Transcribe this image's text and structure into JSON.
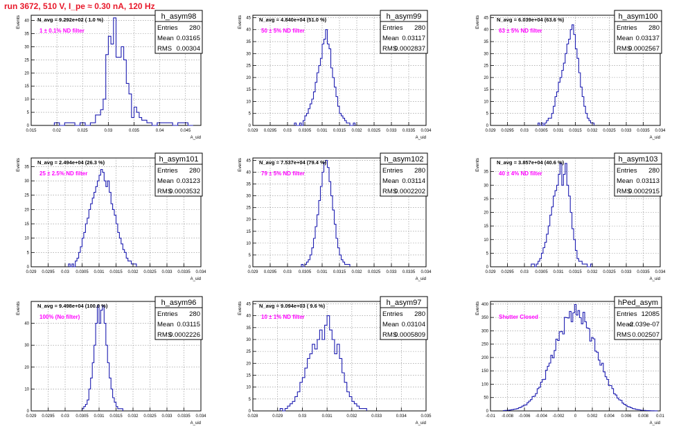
{
  "page_title": "run 3672,   510 V, I_pe ≈ 0.30 nA, 120 Hz",
  "y_axis_label": "Events",
  "x_axis_label": "A_uid",
  "colors": {
    "histogram": "#1c1cb0",
    "annotation": "#ff00ff",
    "title": "#e8182a",
    "grid": "#888888"
  },
  "chart_data": [
    {
      "type": "bar",
      "name": "h_asym98",
      "navg_text": "N_avg = 9.292e+02 ( 1.0 %)",
      "filter_label": "1 ± 0.1% ND filter",
      "stats": {
        "entries": "280",
        "mean": "0.03165",
        "rms": "0.00304"
      },
      "xlim": [
        0.015,
        0.048
      ],
      "ylim": [
        0,
        42
      ],
      "x_ticks": [
        0.015,
        0.02,
        0.025,
        0.03,
        0.035,
        0.04,
        0.045
      ],
      "x_tick_labels": [
        "0.015",
        "0.02",
        "0.025",
        "0.03",
        "0.035",
        "0.04",
        "0.045"
      ],
      "y_ticks": [
        0,
        5,
        10,
        15,
        20,
        25,
        30,
        35,
        40
      ],
      "bin_edges": [
        0.0195,
        0.0205,
        0.0215,
        0.0235,
        0.0245,
        0.0255,
        0.0265,
        0.0275,
        0.0285,
        0.029,
        0.0295,
        0.03,
        0.0305,
        0.031,
        0.0315,
        0.032,
        0.0325,
        0.033,
        0.0335,
        0.034,
        0.0345,
        0.035,
        0.0355,
        0.036,
        0.0365,
        0.037,
        0.0375,
        0.038,
        0.0385,
        0.0395,
        0.0425,
        0.0435,
        0.0455,
        0.0465
      ],
      "counts": [
        1,
        0,
        1,
        0,
        1,
        0,
        1,
        4,
        6,
        10,
        27,
        34,
        31,
        41,
        26,
        26,
        30,
        25,
        16,
        12,
        3,
        7,
        5,
        3,
        2,
        2,
        1,
        1,
        0,
        1,
        0,
        1,
        0
      ]
    },
    {
      "type": "bar",
      "name": "h_asym99",
      "navg_text": "N_avg = 4.840e+04 (51.0 %)",
      "filter_label": "50 ± 5% ND filter",
      "stats": {
        "entries": "280",
        "mean": "0.03117",
        "rms": "0.0002837"
      },
      "xlim": [
        0.029,
        0.034
      ],
      "ylim": [
        0,
        46
      ],
      "x_ticks": [
        0.029,
        0.0295,
        0.03,
        0.0305,
        0.031,
        0.0315,
        0.032,
        0.0325,
        0.033,
        0.0335,
        0.034
      ],
      "x_tick_labels": [
        "0.029",
        "0.0295",
        "0.03",
        "0.0305",
        "0.031",
        "0.0315",
        "0.032",
        "0.0325",
        "0.033",
        "0.0335",
        "0.034"
      ],
      "y_ticks": [
        0,
        5,
        10,
        15,
        20,
        25,
        30,
        35,
        40,
        45
      ],
      "bin_edges": [
        0.0302,
        0.03025,
        0.0303,
        0.03035,
        0.0304,
        0.03045,
        0.0305,
        0.03055,
        0.0306,
        0.03065,
        0.0307,
        0.03075,
        0.0308,
        0.03085,
        0.0309,
        0.03095,
        0.031,
        0.03105,
        0.0311,
        0.03115,
        0.0312,
        0.03125,
        0.0313,
        0.03135,
        0.0314,
        0.03145,
        0.0315,
        0.03155,
        0.0316,
        0.03165,
        0.0317,
        0.03175,
        0.0318,
        0.03185,
        0.0319,
        0.03195
      ],
      "counts": [
        1,
        0,
        0,
        1,
        0,
        2,
        4,
        5,
        7,
        9,
        11,
        14,
        18,
        22,
        25,
        28,
        34,
        36,
        40,
        34,
        32,
        24,
        20,
        16,
        12,
        8,
        5,
        4,
        3,
        2,
        1,
        1,
        0,
        0,
        1
      ]
    },
    {
      "type": "bar",
      "name": "h_asym100",
      "navg_text": "N_avg = 6.039e+04 (63.6 %)",
      "filter_label": "63 ± 5% ND filter",
      "stats": {
        "entries": "280",
        "mean": "0.03137",
        "rms": "0.0002567"
      },
      "xlim": [
        0.029,
        0.034
      ],
      "ylim": [
        0,
        46
      ],
      "x_ticks": [
        0.029,
        0.0295,
        0.03,
        0.0305,
        0.031,
        0.0315,
        0.032,
        0.0325,
        0.033,
        0.0335,
        0.034
      ],
      "x_tick_labels": [
        "0.029",
        "0.0295",
        "0.03",
        "0.0305",
        "0.031",
        "0.0315",
        "0.032",
        "0.0325",
        "0.033",
        "0.0335",
        "0.034"
      ],
      "y_ticks": [
        0,
        5,
        10,
        15,
        20,
        25,
        30,
        35,
        40,
        45
      ],
      "bin_edges": [
        0.0304,
        0.03045,
        0.0305,
        0.03055,
        0.0306,
        0.03065,
        0.0307,
        0.03075,
        0.0308,
        0.03085,
        0.0309,
        0.03095,
        0.031,
        0.03105,
        0.0311,
        0.03115,
        0.0312,
        0.03125,
        0.0313,
        0.03135,
        0.0314,
        0.03145,
        0.0315,
        0.03155,
        0.0316,
        0.03165,
        0.0317,
        0.03175,
        0.0318,
        0.03185,
        0.0319,
        0.03195,
        0.032,
        0.03205
      ],
      "counts": [
        1,
        0,
        1,
        0,
        1,
        2,
        3,
        3,
        5,
        8,
        12,
        14,
        18,
        20,
        23,
        26,
        30,
        34,
        36,
        40,
        42,
        38,
        32,
        28,
        22,
        16,
        12,
        8,
        5,
        3,
        2,
        1,
        1
      ]
    },
    {
      "type": "bar",
      "name": "h_asym101",
      "navg_text": "N_avg = 2.494e+04 (26.3 %)",
      "filter_label": "25 ± 2.5% ND filter",
      "stats": {
        "entries": "280",
        "mean": "0.03123",
        "rms": "0.0003532"
      },
      "xlim": [
        0.029,
        0.034
      ],
      "ylim": [
        0,
        38
      ],
      "x_ticks": [
        0.029,
        0.0295,
        0.03,
        0.0305,
        0.031,
        0.0315,
        0.032,
        0.0325,
        0.033,
        0.0335,
        0.034
      ],
      "x_tick_labels": [
        "0.029",
        "0.0295",
        "0.03",
        "0.0305",
        "0.031",
        "0.0315",
        "0.032",
        "0.0325",
        "0.033",
        "0.0335",
        "0.034"
      ],
      "y_ticks": [
        0,
        5,
        10,
        15,
        20,
        25,
        30,
        35
      ],
      "bin_edges": [
        0.0301,
        0.03015,
        0.0302,
        0.03025,
        0.0303,
        0.03035,
        0.0304,
        0.03045,
        0.0305,
        0.03055,
        0.0306,
        0.03065,
        0.0307,
        0.03075,
        0.0308,
        0.03085,
        0.0309,
        0.03095,
        0.031,
        0.03105,
        0.0311,
        0.03115,
        0.0312,
        0.03125,
        0.0313,
        0.03135,
        0.0314,
        0.03145,
        0.0315,
        0.03155,
        0.0316,
        0.03165,
        0.0317,
        0.03175,
        0.0318,
        0.03185,
        0.0319,
        0.03195,
        0.032,
        0.03205,
        0.0321
      ],
      "counts": [
        1,
        0,
        1,
        0,
        2,
        3,
        5,
        7,
        10,
        12,
        15,
        17,
        20,
        22,
        24,
        26,
        28,
        30,
        32,
        34,
        33,
        30,
        28,
        30,
        26,
        22,
        20,
        18,
        15,
        12,
        10,
        8,
        6,
        5,
        3,
        2,
        2,
        1,
        1,
        1
      ]
    },
    {
      "type": "bar",
      "name": "h_asym102",
      "navg_text": "N_avg = 7.537e+04 (79.4 %)",
      "filter_label": "79 ± 5% ND filter",
      "stats": {
        "entries": "280",
        "mean": "0.03114",
        "rms": "0.0002202"
      },
      "xlim": [
        0.029,
        0.034
      ],
      "ylim": [
        0,
        46
      ],
      "x_ticks": [
        0.029,
        0.0295,
        0.03,
        0.0305,
        0.031,
        0.0315,
        0.032,
        0.0325,
        0.033,
        0.0335,
        0.034
      ],
      "x_tick_labels": [
        "0.029",
        "0.0295",
        "0.03",
        "0.0305",
        "0.031",
        "0.0315",
        "0.032",
        "0.0325",
        "0.033",
        "0.0335",
        "0.034"
      ],
      "y_ticks": [
        0,
        5,
        10,
        15,
        20,
        25,
        30,
        35,
        40,
        45
      ],
      "bin_edges": [
        0.0304,
        0.03045,
        0.0305,
        0.03055,
        0.0306,
        0.03065,
        0.0307,
        0.03075,
        0.0308,
        0.03085,
        0.0309,
        0.03095,
        0.031,
        0.03105,
        0.0311,
        0.03115,
        0.0312,
        0.03125,
        0.0313,
        0.03135,
        0.0314,
        0.03145,
        0.0315,
        0.03155,
        0.0316,
        0.03165,
        0.0317,
        0.03175,
        0.0318
      ],
      "counts": [
        1,
        0,
        1,
        2,
        3,
        5,
        8,
        12,
        17,
        22,
        28,
        34,
        40,
        44,
        45,
        42,
        36,
        30,
        24,
        18,
        12,
        8,
        5,
        3,
        2,
        1,
        1,
        1
      ]
    },
    {
      "type": "bar",
      "name": "h_asym103",
      "navg_text": "N_avg = 3.857e+04 (40.6 %)",
      "filter_label": "40 ± 4% ND filter",
      "stats": {
        "entries": "280",
        "mean": "0.03113",
        "rms": "0.0002915"
      },
      "xlim": [
        0.029,
        0.034
      ],
      "ylim": [
        0,
        40
      ],
      "x_ticks": [
        0.029,
        0.0295,
        0.03,
        0.0305,
        0.031,
        0.0315,
        0.032,
        0.0325,
        0.033,
        0.0335,
        0.034
      ],
      "x_tick_labels": [
        "0.029",
        "0.0295",
        "0.03",
        "0.0305",
        "0.031",
        "0.0315",
        "0.032",
        "0.0325",
        "0.033",
        "0.0335",
        "0.034"
      ],
      "y_ticks": [
        0,
        5,
        10,
        15,
        20,
        25,
        30,
        35
      ],
      "bin_edges": [
        0.0302,
        0.03025,
        0.0303,
        0.03035,
        0.0304,
        0.03045,
        0.0305,
        0.03055,
        0.0306,
        0.03065,
        0.0307,
        0.03075,
        0.0308,
        0.03085,
        0.0309,
        0.03095,
        0.031,
        0.03105,
        0.0311,
        0.03115,
        0.0312,
        0.03125,
        0.0313,
        0.03135,
        0.0314,
        0.03145,
        0.0315,
        0.03155,
        0.0316,
        0.03165,
        0.0317,
        0.03175,
        0.0318,
        0.03185,
        0.0319,
        0.03195,
        0.032
      ],
      "counts": [
        1,
        1,
        0,
        1,
        2,
        3,
        5,
        7,
        9,
        12,
        15,
        19,
        22,
        26,
        28,
        30,
        34,
        38,
        30,
        34,
        38,
        30,
        26,
        20,
        14,
        10,
        6,
        3,
        2,
        2,
        1,
        1,
        1,
        0,
        0,
        1
      ]
    },
    {
      "type": "bar",
      "name": "h_asym96",
      "navg_text": "N_avg = 9.498e+04 (100.0 %)",
      "filter_label": "100% (No filter)",
      "stats": {
        "entries": "280",
        "mean": "0.03115",
        "rms": "0.0002226"
      },
      "xlim": [
        0.029,
        0.034
      ],
      "ylim": [
        0,
        50
      ],
      "x_ticks": [
        0.029,
        0.0295,
        0.03,
        0.0305,
        0.031,
        0.0315,
        0.032,
        0.0325,
        0.033,
        0.0335,
        0.034
      ],
      "x_tick_labels": [
        "0.029",
        "0.0295",
        "0.03",
        "0.0305",
        "0.031",
        "0.0315",
        "0.032",
        "0.0325",
        "0.033",
        "0.0335",
        "0.034"
      ],
      "y_ticks": [
        0,
        10,
        20,
        30,
        40
      ],
      "bin_edges": [
        0.0305,
        0.03055,
        0.0306,
        0.03065,
        0.0307,
        0.03075,
        0.0308,
        0.03085,
        0.0309,
        0.03095,
        0.031,
        0.03105,
        0.0311,
        0.03115,
        0.0312,
        0.03125,
        0.0313,
        0.03135,
        0.0314,
        0.03145,
        0.0315,
        0.03155,
        0.0316,
        0.03165,
        0.0317
      ],
      "counts": [
        1,
        2,
        3,
        5,
        10,
        15,
        22,
        30,
        40,
        48,
        40,
        46,
        48,
        40,
        30,
        22,
        15,
        10,
        6,
        4,
        2,
        1,
        1,
        1
      ]
    },
    {
      "type": "bar",
      "name": "h_asym97",
      "navg_text": "N_avg = 9.094e+03 ( 9.6 %)",
      "filter_label": "10 ± 1% ND filter",
      "stats": {
        "entries": "280",
        "mean": "0.03104",
        "rms": "0.0005809"
      },
      "xlim": [
        0.028,
        0.035
      ],
      "ylim": [
        0,
        46
      ],
      "x_ticks": [
        0.028,
        0.029,
        0.03,
        0.031,
        0.032,
        0.033,
        0.034,
        0.035
      ],
      "x_tick_labels": [
        "0.028",
        "0.029",
        "0.03",
        "0.031",
        "0.032",
        "0.033",
        "0.034",
        "0.035"
      ],
      "y_ticks": [
        0,
        5,
        10,
        15,
        20,
        25,
        30,
        35,
        40,
        45
      ],
      "bin_edges": [
        0.0291,
        0.0292,
        0.0293,
        0.0294,
        0.0295,
        0.0296,
        0.0297,
        0.0298,
        0.0299,
        0.03,
        0.0301,
        0.0302,
        0.0303,
        0.0304,
        0.0305,
        0.0306,
        0.0307,
        0.0308,
        0.0309,
        0.031,
        0.0311,
        0.0312,
        0.0313,
        0.0314,
        0.0315,
        0.0316,
        0.0317,
        0.0318,
        0.0319,
        0.032,
        0.0321,
        0.0322,
        0.0323,
        0.0324,
        0.0325,
        0.0326
      ],
      "counts": [
        1,
        0,
        1,
        2,
        3,
        4,
        6,
        8,
        12,
        14,
        18,
        22,
        24,
        28,
        26,
        30,
        34,
        30,
        36,
        40,
        34,
        30,
        24,
        28,
        22,
        16,
        12,
        8,
        6,
        4,
        3,
        2,
        1,
        1,
        1
      ]
    },
    {
      "type": "bar",
      "name": "hPed_asym",
      "navg_text": "",
      "filter_label": "Shutter Closed",
      "stats": {
        "entries": "12085",
        "mean": "-2.039e-07",
        "rms": "0.002507"
      },
      "xlim": [
        -0.01,
        0.01
      ],
      "ylim": [
        0,
        410
      ],
      "x_ticks": [
        -0.01,
        -0.008,
        -0.006,
        -0.004,
        -0.002,
        0,
        0.002,
        0.004,
        0.006,
        0.008,
        0.01
      ],
      "x_tick_labels": [
        "-0.01",
        "-0.008",
        "-0.006",
        "-0.004",
        "-0.002",
        "0",
        "0.002",
        "0.004",
        "0.006",
        "0.008",
        "0.01"
      ],
      "y_ticks": [
        0,
        50,
        100,
        150,
        200,
        250,
        300,
        350,
        400
      ],
      "gaussian": {
        "mean": 0.0,
        "sigma": 0.0025,
        "peak": 370,
        "min_x": -0.0085,
        "max_x": 0.0095,
        "bin_width": 0.0002
      }
    }
  ]
}
